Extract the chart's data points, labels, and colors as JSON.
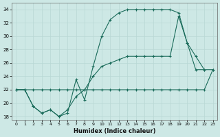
{
  "xlabel": "Humidex (Indice chaleur)",
  "xlim": [
    -0.5,
    23.5
  ],
  "ylim": [
    17.5,
    35.0
  ],
  "yticks": [
    18,
    20,
    22,
    24,
    26,
    28,
    30,
    32,
    34
  ],
  "xticks": [
    0,
    1,
    2,
    3,
    4,
    5,
    6,
    7,
    8,
    9,
    10,
    11,
    12,
    13,
    14,
    15,
    16,
    17,
    18,
    19,
    20,
    21,
    22,
    23
  ],
  "bg_color": "#cde8e5",
  "grid_color": "#b8d8d4",
  "line_color": "#1a6b5a",
  "line1_x": [
    0,
    1,
    2,
    3,
    4,
    5,
    6,
    7,
    8,
    9,
    10,
    11,
    12,
    13,
    14,
    15,
    16,
    17,
    18,
    19,
    20,
    21,
    22,
    23
  ],
  "line1_y": [
    22,
    22,
    22,
    22,
    22,
    22,
    22,
    22,
    22,
    22,
    22,
    22,
    22,
    22,
    22,
    22,
    22,
    22,
    22,
    22,
    22,
    22,
    22,
    25
  ],
  "line2_x": [
    0,
    1,
    2,
    3,
    4,
    5,
    6,
    7,
    8,
    9,
    10,
    11,
    12,
    13,
    14,
    15,
    16,
    17,
    18,
    19,
    20,
    21,
    22
  ],
  "line2_y": [
    22,
    22,
    19.5,
    18.5,
    19,
    18,
    18.5,
    23.5,
    20.5,
    25.5,
    30,
    32.5,
    33.5,
    34,
    34,
    34,
    34,
    34,
    34,
    33.5,
    29,
    25,
    25
  ],
  "line3_x": [
    0,
    1,
    2,
    3,
    4,
    5,
    6,
    7,
    8,
    9,
    10,
    11,
    12,
    13,
    14,
    15,
    16,
    17,
    18,
    19,
    20,
    21,
    22,
    23
  ],
  "line3_y": [
    22,
    22,
    19.5,
    18.5,
    19,
    18,
    19,
    21,
    22,
    24,
    25.5,
    26,
    26.5,
    27,
    27,
    27,
    27,
    27,
    27,
    33,
    29,
    27,
    25,
    25
  ]
}
